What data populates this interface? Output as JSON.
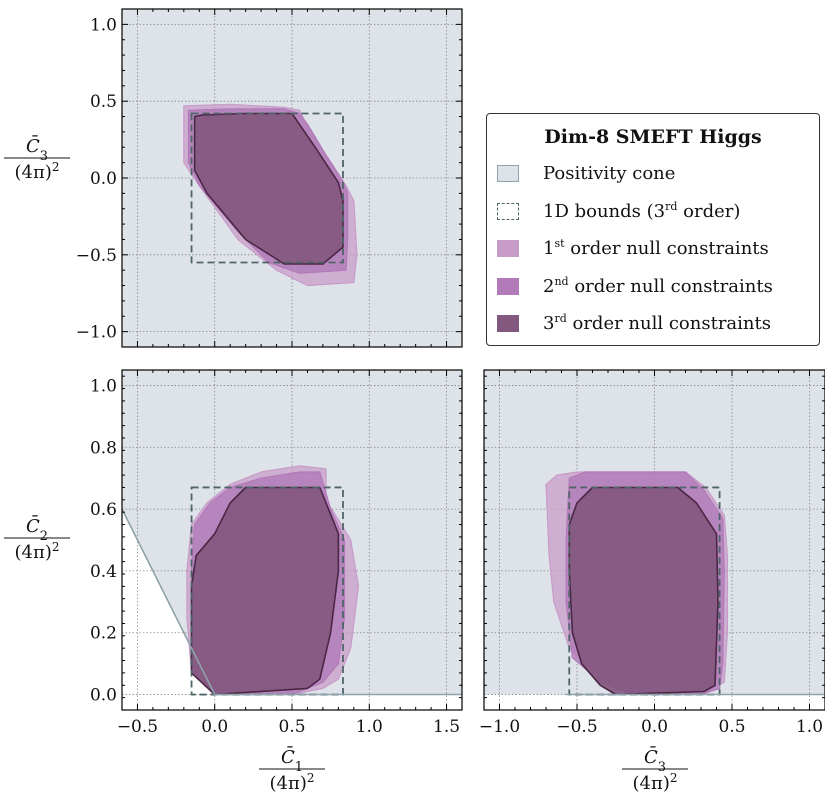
{
  "colors": {
    "cone": "#dde3e8",
    "cone_edge": "#8fa3ad",
    "bound": "#4f6469",
    "order1": "#c89cc9",
    "order2": "#b27ab8",
    "order3": "#83587f",
    "edge3": "#4a2745"
  },
  "legend": {
    "title": "Dim-8 SMEFT Higgs",
    "items": [
      {
        "label_html": "Positivity cone",
        "icon": "filled-square"
      },
      {
        "label_html": "1D bounds (3<sup>rd</sup> order)",
        "icon": "dashed-square"
      },
      {
        "label_html": "1<sup>st</sup> order null constraints",
        "icon": "filled-square"
      },
      {
        "label_html": "2<sup>nd</sup> order null constraints",
        "icon": "filled-square"
      },
      {
        "label_html": "3<sup>rd</sup> order null constraints",
        "icon": "filled-square"
      }
    ]
  },
  "chart_data": [
    {
      "type": "area",
      "panel": "top-left",
      "xlabel": "C̄1/(4π)²",
      "ylabel": "C̄3/(4π)²",
      "xlim": [
        -0.6,
        1.6
      ],
      "ylim": [
        -1.1,
        1.1
      ],
      "xticks": [
        -0.5,
        0.0,
        0.5,
        1.0,
        1.5
      ],
      "yticks": [
        -1.0,
        -0.5,
        0.0,
        0.5,
        1.0
      ],
      "ytick_labels": [
        "−1.0",
        "−0.5",
        "0.0",
        "0.5",
        "1.0"
      ],
      "grid": true,
      "bounds_box": {
        "x": [
          -0.15,
          0.83
        ],
        "y": [
          -0.55,
          0.42
        ]
      },
      "series": [
        {
          "name": "1st order null constraints",
          "points": [
            [
              -0.2,
              0.47
            ],
            [
              0.1,
              0.48
            ],
            [
              0.45,
              0.46
            ],
            [
              0.55,
              0.44
            ],
            [
              0.6,
              0.33
            ],
            [
              0.75,
              0.1
            ],
            [
              0.85,
              -0.05
            ],
            [
              0.9,
              -0.15
            ],
            [
              0.92,
              -0.5
            ],
            [
              0.9,
              -0.68
            ],
            [
              0.6,
              -0.7
            ],
            [
              0.4,
              -0.6
            ],
            [
              0.15,
              -0.4
            ],
            [
              -0.1,
              -0.05
            ],
            [
              -0.2,
              0.1
            ],
            [
              -0.2,
              0.3
            ]
          ]
        },
        {
          "name": "2nd order null constraints",
          "points": [
            [
              -0.17,
              0.44
            ],
            [
              0.1,
              0.45
            ],
            [
              0.45,
              0.45
            ],
            [
              0.55,
              0.42
            ],
            [
              0.6,
              0.35
            ],
            [
              0.72,
              0.15
            ],
            [
              0.83,
              -0.02
            ],
            [
              0.86,
              -0.1
            ],
            [
              0.86,
              -0.4
            ],
            [
              0.85,
              -0.6
            ],
            [
              0.55,
              -0.62
            ],
            [
              0.35,
              -0.55
            ],
            [
              0.15,
              -0.35
            ],
            [
              -0.1,
              -0.05
            ],
            [
              -0.17,
              0.1
            ],
            [
              -0.17,
              0.3
            ]
          ]
        },
        {
          "name": "3rd order null constraints",
          "points": [
            [
              -0.13,
              0.4
            ],
            [
              -0.08,
              0.41
            ],
            [
              0.2,
              0.42
            ],
            [
              0.5,
              0.42
            ],
            [
              0.65,
              0.2
            ],
            [
              0.8,
              -0.03
            ],
            [
              0.83,
              -0.15
            ],
            [
              0.83,
              -0.45
            ],
            [
              0.7,
              -0.56
            ],
            [
              0.45,
              -0.56
            ],
            [
              0.2,
              -0.4
            ],
            [
              -0.05,
              -0.1
            ],
            [
              -0.13,
              0.05
            ],
            [
              -0.13,
              0.3
            ]
          ]
        }
      ]
    },
    {
      "type": "area",
      "panel": "bottom-left",
      "xlabel": "C̄1/(4π)²",
      "ylabel": "C̄2/(4π)²",
      "xlim": [
        -0.6,
        1.6
      ],
      "ylim": [
        -0.05,
        1.05
      ],
      "xticks": [
        -0.5,
        0.0,
        0.5,
        1.0,
        1.5
      ],
      "xtick_labels": [
        "−0.5",
        "0.0",
        "0.5",
        "1.0",
        "1.5"
      ],
      "yticks": [
        0.0,
        0.2,
        0.4,
        0.6,
        0.8,
        1.0
      ],
      "grid": true,
      "positivity_boundary": [
        [
          -0.6,
          0.6
        ],
        [
          -0.2,
          0.2
        ],
        [
          0.0,
          0.0
        ],
        [
          1.6,
          0.0
        ]
      ],
      "bounds_box": {
        "x": [
          -0.15,
          0.83
        ],
        "y": [
          0.0,
          0.67
        ]
      },
      "series": [
        {
          "name": "1st order null constraints",
          "points": [
            [
              -0.15,
              0.55
            ],
            [
              -0.05,
              0.62
            ],
            [
              0.1,
              0.68
            ],
            [
              0.3,
              0.72
            ],
            [
              0.55,
              0.74
            ],
            [
              0.72,
              0.73
            ],
            [
              0.72,
              0.63
            ],
            [
              0.88,
              0.5
            ],
            [
              0.93,
              0.35
            ],
            [
              0.88,
              0.15
            ],
            [
              0.8,
              0.05
            ],
            [
              0.7,
              0.02
            ],
            [
              0.5,
              0.0
            ],
            [
              0.0,
              0.0
            ],
            [
              -0.15,
              0.07
            ],
            [
              -0.18,
              0.25
            ],
            [
              -0.18,
              0.4
            ]
          ]
        },
        {
          "name": "2nd order null constraints",
          "points": [
            [
              -0.13,
              0.55
            ],
            [
              -0.03,
              0.62
            ],
            [
              0.1,
              0.67
            ],
            [
              0.3,
              0.7
            ],
            [
              0.55,
              0.72
            ],
            [
              0.68,
              0.72
            ],
            [
              0.75,
              0.6
            ],
            [
              0.84,
              0.5
            ],
            [
              0.84,
              0.25
            ],
            [
              0.8,
              0.1
            ],
            [
              0.7,
              0.04
            ],
            [
              0.5,
              0.0
            ],
            [
              0.0,
              0.0
            ],
            [
              -0.13,
              0.07
            ],
            [
              -0.15,
              0.25
            ],
            [
              -0.15,
              0.4
            ]
          ]
        },
        {
          "name": "3rd order null constraints",
          "points": [
            [
              0.0,
              0.52
            ],
            [
              0.1,
              0.62
            ],
            [
              0.2,
              0.67
            ],
            [
              0.68,
              0.67
            ],
            [
              0.8,
              0.52
            ],
            [
              0.8,
              0.4
            ],
            [
              0.75,
              0.2
            ],
            [
              0.68,
              0.05
            ],
            [
              0.6,
              0.02
            ],
            [
              0.0,
              0.0
            ],
            [
              -0.15,
              0.07
            ],
            [
              -0.15,
              0.35
            ],
            [
              -0.12,
              0.45
            ]
          ]
        }
      ]
    },
    {
      "type": "area",
      "panel": "bottom-right",
      "xlabel": "C̄3/(4π)²",
      "ylabel": "",
      "xlim": [
        -1.1,
        1.1
      ],
      "ylim": [
        -0.05,
        1.05
      ],
      "xticks": [
        -1.0,
        -0.5,
        0.0,
        0.5,
        1.0
      ],
      "xtick_labels": [
        "−1.0",
        "−0.5",
        "0.0",
        "0.5",
        "1.0"
      ],
      "yticks": [
        0.0,
        0.2,
        0.4,
        0.6,
        0.8,
        1.0
      ],
      "grid": true,
      "positivity_boundary": [
        [
          -0.57,
          0.0
        ],
        [
          1.1,
          0.0
        ]
      ],
      "bounds_box": {
        "x": [
          -0.55,
          0.42
        ],
        "y": [
          0.0,
          0.67
        ]
      },
      "series": [
        {
          "name": "1st order null constraints",
          "points": [
            [
              -0.7,
              0.68
            ],
            [
              -0.63,
              0.71
            ],
            [
              -0.5,
              0.72
            ],
            [
              0.2,
              0.72
            ],
            [
              0.33,
              0.67
            ],
            [
              0.45,
              0.58
            ],
            [
              0.47,
              0.45
            ],
            [
              0.47,
              0.2
            ],
            [
              0.45,
              0.04
            ],
            [
              0.3,
              0.0
            ],
            [
              -0.1,
              0.0
            ],
            [
              -0.3,
              0.03
            ],
            [
              -0.55,
              0.15
            ],
            [
              -0.65,
              0.3
            ],
            [
              -0.68,
              0.45
            ]
          ]
        },
        {
          "name": "2nd order null constraints",
          "points": [
            [
              -0.55,
              0.7
            ],
            [
              -0.45,
              0.72
            ],
            [
              0.2,
              0.72
            ],
            [
              0.32,
              0.66
            ],
            [
              0.44,
              0.57
            ],
            [
              0.45,
              0.4
            ],
            [
              0.44,
              0.1
            ],
            [
              0.42,
              0.02
            ],
            [
              0.3,
              0.0
            ],
            [
              -0.15,
              0.0
            ],
            [
              -0.35,
              0.04
            ],
            [
              -0.53,
              0.12
            ],
            [
              -0.57,
              0.3
            ],
            [
              -0.57,
              0.5
            ]
          ]
        },
        {
          "name": "3rd order null constraints",
          "points": [
            [
              -0.55,
              0.55
            ],
            [
              -0.5,
              0.62
            ],
            [
              -0.4,
              0.67
            ],
            [
              0.15,
              0.67
            ],
            [
              0.27,
              0.62
            ],
            [
              0.4,
              0.52
            ],
            [
              0.41,
              0.3
            ],
            [
              0.39,
              0.03
            ],
            [
              0.32,
              0.01
            ],
            [
              -0.25,
              0.0
            ],
            [
              -0.35,
              0.03
            ],
            [
              -0.47,
              0.1
            ],
            [
              -0.53,
              0.2
            ],
            [
              -0.55,
              0.4
            ]
          ]
        }
      ]
    }
  ]
}
